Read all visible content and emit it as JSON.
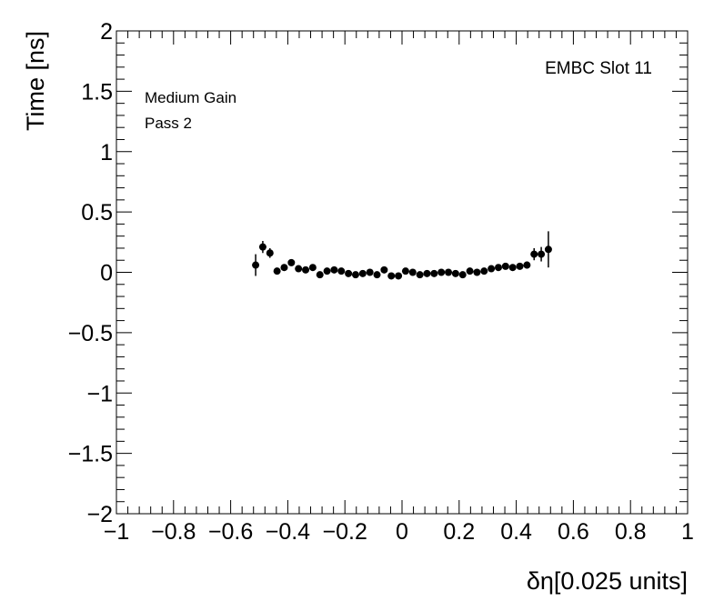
{
  "chart_data": {
    "type": "scatter",
    "title": "",
    "xlabel": "δη[0.025 units]",
    "ylabel": "Time [ns]",
    "xlim": [
      -1,
      1
    ],
    "ylim": [
      -2,
      2
    ],
    "x_ticks": [
      -1,
      -0.8,
      -0.6,
      -0.4,
      -0.2,
      0,
      0.2,
      0.4,
      0.6,
      0.8,
      1
    ],
    "x_tick_labels": [
      "−1",
      "−0.8",
      "−0.6",
      "−0.4",
      "−0.2",
      "0",
      "0.2",
      "0.4",
      "0.6",
      "0.8",
      "1"
    ],
    "y_ticks": [
      -2,
      -1.5,
      -1,
      -0.5,
      0,
      0.5,
      1,
      1.5,
      2
    ],
    "y_tick_labels": [
      "−2",
      "−1.5",
      "−1",
      "−0.5",
      "0",
      "0.5",
      "1",
      "1.5",
      "2"
    ],
    "grid": false,
    "annotations": {
      "slot": "EMBC Slot 11",
      "gain": "Medium Gain",
      "pass": "Pass 2"
    },
    "series": [
      {
        "x": [
          -0.5125,
          -0.4875,
          -0.4625,
          -0.4375,
          -0.4125,
          -0.3875,
          -0.3625,
          -0.3375,
          -0.3125,
          -0.2875,
          -0.2625,
          -0.2375,
          -0.2125,
          -0.1875,
          -0.1625,
          -0.1375,
          -0.1125,
          -0.0875,
          -0.0625,
          -0.0375,
          -0.0125,
          0.0125,
          0.0375,
          0.0625,
          0.0875,
          0.1125,
          0.1375,
          0.1625,
          0.1875,
          0.2125,
          0.2375,
          0.2625,
          0.2875,
          0.3125,
          0.3375,
          0.3625,
          0.3875,
          0.4125,
          0.4375,
          0.4625,
          0.4875,
          0.5125
        ],
        "y": [
          0.06,
          0.21,
          0.16,
          0.01,
          0.04,
          0.08,
          0.03,
          0.02,
          0.04,
          -0.02,
          0.01,
          0.02,
          0.01,
          -0.01,
          -0.02,
          -0.01,
          0.0,
          -0.02,
          0.02,
          -0.03,
          -0.03,
          0.01,
          0.0,
          -0.02,
          -0.01,
          -0.01,
          0.0,
          0.0,
          -0.01,
          -0.02,
          0.01,
          0.0,
          0.01,
          0.03,
          0.04,
          0.05,
          0.04,
          0.05,
          0.06,
          0.15,
          0.15,
          0.19
        ],
        "yerr": [
          0.09,
          0.05,
          0.04,
          0.02,
          0.02,
          0.02,
          0.02,
          0.02,
          0.02,
          0.02,
          0.02,
          0.02,
          0.02,
          0.02,
          0.02,
          0.02,
          0.02,
          0.02,
          0.02,
          0.02,
          0.02,
          0.02,
          0.02,
          0.02,
          0.02,
          0.02,
          0.02,
          0.02,
          0.02,
          0.02,
          0.02,
          0.02,
          0.02,
          0.02,
          0.02,
          0.02,
          0.02,
          0.02,
          0.03,
          0.05,
          0.06,
          0.15
        ]
      }
    ]
  }
}
